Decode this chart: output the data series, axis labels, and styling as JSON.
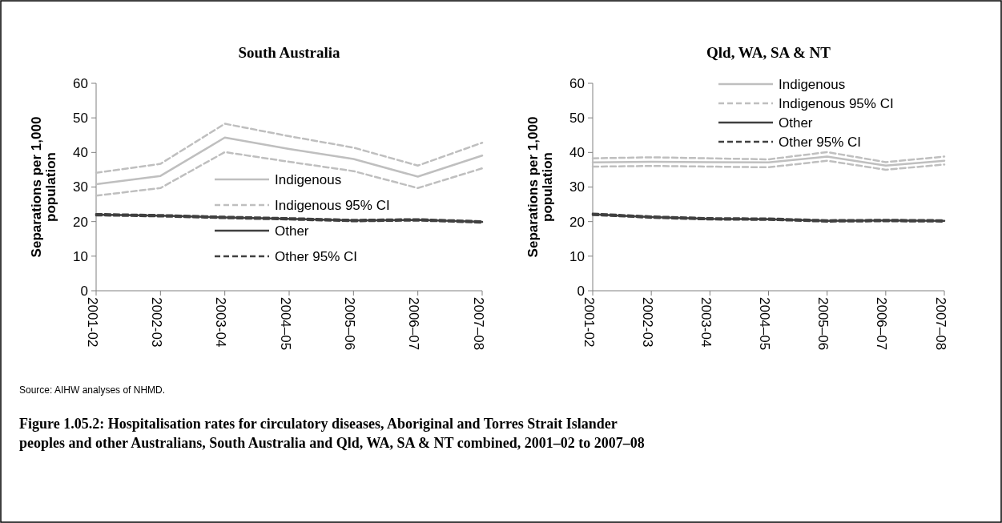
{
  "chart_data": [
    {
      "type": "line",
      "title": "South Australia",
      "ylabel": "Separations per 1,000 population",
      "categories": [
        "2001-02",
        "2002-03",
        "2003-04",
        "2004–05",
        "2005–06",
        "2006–07",
        "2007–08"
      ],
      "ylim": [
        0,
        60
      ],
      "yticks": [
        0,
        10,
        20,
        30,
        40,
        50,
        60
      ],
      "grid": false,
      "legend": "bottom",
      "marker": "none",
      "series": [
        {
          "name": "Indigenous",
          "color": "#bfbfbf",
          "line_style": "solid",
          "values": [
            30.8,
            33.2,
            44.3,
            41.0,
            38.1,
            33.0,
            39.1
          ]
        },
        {
          "name": "Indigenous 95% CI",
          "color": "#bfbfbf",
          "line_style": "dashed",
          "values": [
            34.1,
            36.7,
            48.3,
            44.7,
            41.4,
            36.2,
            42.8
          ]
        },
        {
          "color": "#bfbfbf",
          "line_style": "dashed",
          "values": [
            27.5,
            29.7,
            40.1,
            37.3,
            34.6,
            29.7,
            35.4
          ]
        },
        {
          "name": "Other",
          "color": "#404040",
          "line_style": "solid",
          "values": [
            22.0,
            21.7,
            21.2,
            20.8,
            20.3,
            20.5,
            19.9
          ]
        },
        {
          "name": "Other 95% CI",
          "color": "#404040",
          "line_style": "dashed",
          "values": [
            22.2,
            21.9,
            21.4,
            21.0,
            20.5,
            20.7,
            20.1
          ]
        },
        {
          "color": "#404040",
          "line_style": "dashed",
          "values": [
            21.8,
            21.5,
            21.0,
            20.6,
            20.1,
            20.3,
            19.7
          ]
        }
      ],
      "annotations": [
        "Source: AIHW analyses of NHMD.",
        "Figure 1.05.2: Hospitalisation rates for circulatory diseases, Aboriginal and Torres Strait Islander peoples and other Australians, South Australia and Qld, WA, SA & NT combined, 2001–02  to 2007–08"
      ]
    },
    {
      "type": "line",
      "title": "Qld, WA, SA & NT",
      "ylabel": "Separations per 1,000 population",
      "categories": [
        "2001-02",
        "2002-03",
        "2003-04",
        "2004–05",
        "2005–06",
        "2006–07",
        "2007–08"
      ],
      "ylim": [
        0,
        60
      ],
      "yticks": [
        0,
        10,
        20,
        30,
        40,
        50,
        60
      ],
      "grid": false,
      "legend": "top right",
      "marker": "none",
      "series": [
        {
          "name": "Indigenous",
          "color": "#bfbfbf",
          "line_style": "solid",
          "values": [
            37.1,
            37.3,
            37.2,
            37.1,
            38.8,
            36.2,
            37.6
          ]
        },
        {
          "name": "Indigenous 95% CI",
          "color": "#bfbfbf",
          "line_style": "dashed",
          "values": [
            38.3,
            38.6,
            38.3,
            38.0,
            40.1,
            37.2,
            38.8
          ]
        },
        {
          "color": "#bfbfbf",
          "line_style": "dashed",
          "values": [
            35.9,
            36.1,
            35.9,
            35.7,
            37.6,
            35.0,
            36.5
          ]
        },
        {
          "name": "Other",
          "color": "#404040",
          "line_style": "solid",
          "values": [
            22.1,
            21.3,
            20.8,
            20.7,
            20.2,
            20.3,
            20.2
          ]
        },
        {
          "name": "Other 95% CI",
          "color": "#404040",
          "line_style": "dashed",
          "values": [
            22.3,
            21.5,
            21.0,
            20.9,
            20.4,
            20.5,
            20.4
          ]
        },
        {
          "color": "#404040",
          "line_style": "dashed",
          "values": [
            21.9,
            21.1,
            20.6,
            20.5,
            20.0,
            20.1,
            20.0
          ]
        }
      ]
    }
  ]
}
